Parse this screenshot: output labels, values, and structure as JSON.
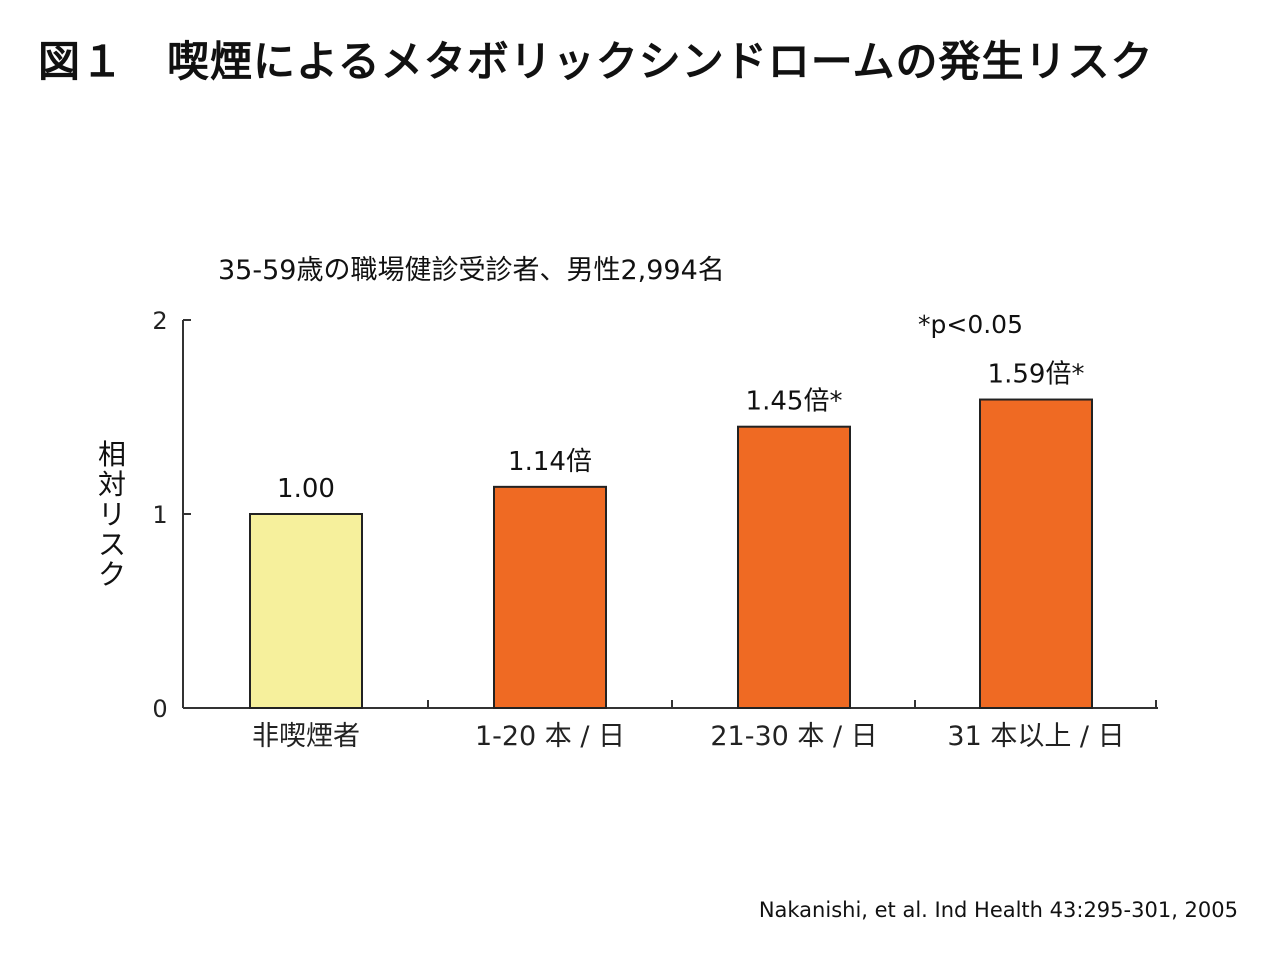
{
  "title": "図１　喫煙によるメタボリックシンドロームの発生リスク",
  "source": "Nakanishi, et al. Ind Health 43:295-301, 2005",
  "colors": {
    "baseline_bar": "#f6f09c",
    "smoker_bar": "#ef6a23",
    "axis": "#333333"
  },
  "chart_data": {
    "type": "bar",
    "subtitle": "35-59歳の職場健診受診者、男性2,994名",
    "ylabel": "相対リスク",
    "annotation": "*p<0.05",
    "categories": [
      "非喫煙者",
      "1-20 本 / 日",
      "21-30 本 / 日",
      "31 本以上 / 日"
    ],
    "values": [
      1.0,
      1.14,
      1.45,
      1.59
    ],
    "data_labels": [
      "1.00",
      "1.14倍",
      "1.45倍*",
      "1.59倍*"
    ],
    "ylim": [
      0,
      2
    ],
    "yticks": [
      0,
      1,
      2
    ],
    "grid": false,
    "legend": "none"
  }
}
